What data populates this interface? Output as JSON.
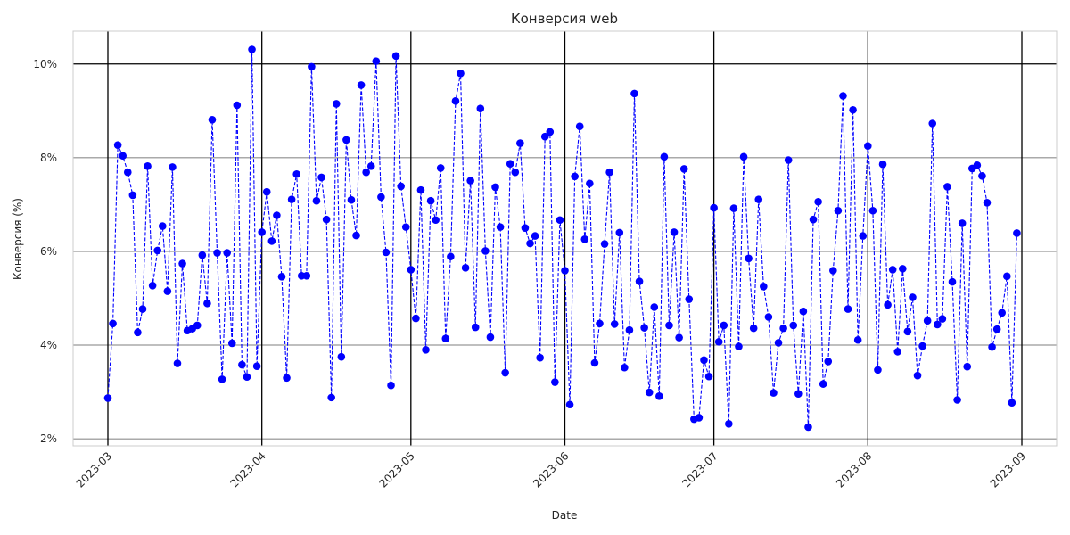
{
  "chart_data": {
    "type": "line",
    "title": "Конверсия web",
    "xlabel": "Date",
    "ylabel": "Конверсия (%)",
    "x_start": "2023-03-01",
    "x_end": "2023-08-31",
    "xlim": [
      "2023-02-22",
      "2023-09-08"
    ],
    "ylim": [
      1.85,
      10.7
    ],
    "x_ticks": [
      "2023-03",
      "2023-04",
      "2023-05",
      "2023-06",
      "2023-07",
      "2023-08",
      "2023-09"
    ],
    "y_ticks": [
      {
        "value": 2,
        "label": "2%"
      },
      {
        "value": 4,
        "label": "4%"
      },
      {
        "value": 6,
        "label": "6%"
      },
      {
        "value": 8,
        "label": "8%"
      },
      {
        "value": 10,
        "label": "10%"
      }
    ],
    "grid": true,
    "series": [
      {
        "name": "",
        "color": "#0000ff",
        "line_style": "dashed",
        "marker": "circle",
        "values": [
          2.87,
          4.46,
          8.27,
          8.04,
          7.69,
          7.2,
          4.27,
          4.77,
          7.82,
          5.27,
          6.02,
          6.54,
          5.15,
          7.8,
          3.61,
          5.74,
          4.31,
          4.35,
          4.42,
          5.92,
          4.89,
          8.81,
          5.97,
          3.27,
          5.97,
          4.04,
          9.12,
          3.58,
          3.32,
          10.31,
          3.55,
          6.41,
          7.27,
          6.22,
          6.77,
          5.46,
          3.3,
          7.11,
          7.65,
          5.48,
          5.48,
          9.94,
          7.08,
          7.58,
          6.68,
          2.88,
          9.15,
          3.75,
          8.38,
          7.1,
          6.34,
          9.55,
          7.69,
          7.82,
          10.06,
          7.16,
          5.98,
          3.14,
          10.17,
          7.39,
          6.52,
          5.61,
          4.57,
          7.31,
          3.9,
          7.08,
          6.67,
          7.78,
          4.14,
          5.89,
          9.21,
          9.8,
          5.65,
          7.51,
          4.38,
          9.05,
          6.01,
          4.17,
          7.37,
          6.52,
          3.41,
          7.87,
          7.69,
          8.31,
          6.5,
          6.17,
          6.33,
          3.73,
          8.45,
          8.55,
          3.21,
          6.67,
          5.59,
          2.73,
          7.6,
          8.67,
          6.26,
          7.45,
          3.62,
          4.46,
          6.16,
          7.69,
          4.45,
          6.4,
          3.52,
          4.32,
          9.37,
          5.36,
          4.37,
          2.99,
          4.81,
          2.91,
          8.02,
          4.42,
          6.41,
          4.16,
          7.76,
          4.98,
          2.42,
          2.45,
          3.68,
          3.33,
          6.93,
          4.07,
          4.42,
          2.32,
          6.92,
          3.97,
          8.02,
          5.85,
          4.36,
          7.11,
          5.25,
          4.6,
          2.98,
          4.05,
          4.36,
          7.95,
          4.42,
          2.96,
          4.72,
          2.25,
          6.68,
          7.06,
          3.17,
          3.65,
          5.59,
          6.87,
          9.32,
          4.77,
          9.02,
          4.11,
          6.33,
          8.25,
          6.87,
          3.47,
          7.86,
          4.86,
          5.61,
          3.86,
          5.63,
          4.29,
          5.02,
          3.35,
          3.98,
          4.52,
          8.73,
          4.44,
          4.56,
          7.38,
          5.35,
          2.83,
          6.6,
          3.54,
          7.77,
          7.84,
          7.61,
          7.04,
          3.96,
          4.34,
          4.69,
          5.47,
          2.77,
          6.39
        ]
      }
    ]
  }
}
